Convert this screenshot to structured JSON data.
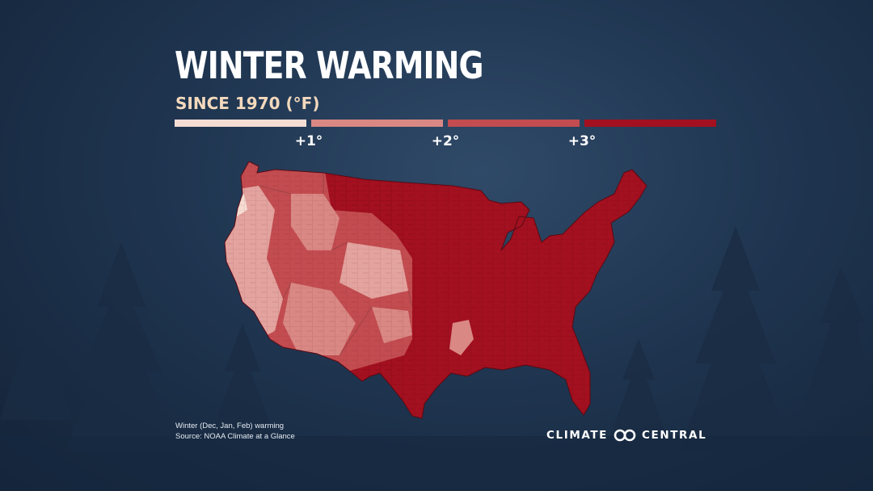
{
  "title": "WINTER WARMING",
  "subtitle": "SINCE 1970 (°F)",
  "legend": {
    "bins": [
      {
        "color": "#f6ddd3"
      },
      {
        "color": "#d98884"
      },
      {
        "color": "#c24c50"
      },
      {
        "color": "#a3101f"
      }
    ],
    "ticks": [
      "+1°",
      "+2°",
      "+3°"
    ]
  },
  "map": {
    "region": "contiguous United States",
    "dominant_east_color": "#a3101f",
    "west_colors": [
      "#f6ddd3",
      "#e3a39f",
      "#d98884",
      "#c24c50"
    ]
  },
  "footnote": {
    "line1": "Winter (Dec, Jan, Feb) warming",
    "line2": "Source: NOAA Climate at a Glance"
  },
  "logo": {
    "left_word": "CLIMATE",
    "right_word": "CENTRAL",
    "icon": "infinity-icon"
  },
  "colors": {
    "background": "#1f3550",
    "subtitle": "#f3d9bd"
  }
}
